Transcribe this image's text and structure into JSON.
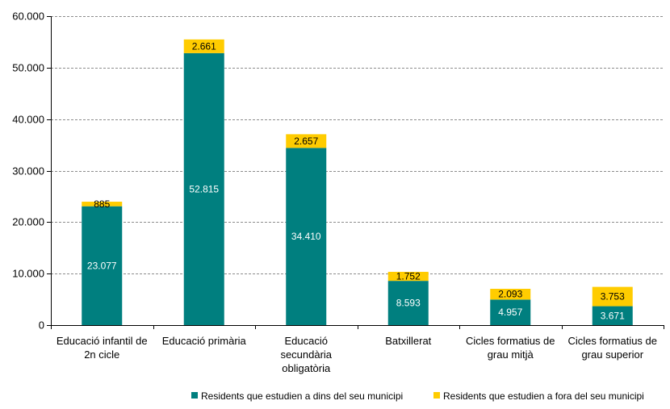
{
  "chart_data": {
    "type": "bar",
    "stacked": true,
    "categories": [
      [
        "Educació infantil de",
        "2n cicle"
      ],
      [
        "Educació primària"
      ],
      [
        "Educació",
        "secundària",
        "obligatòria"
      ],
      [
        "Batxillerat"
      ],
      [
        "Cicles formatius de",
        "grau mitjà"
      ],
      [
        "Cicles formatius de",
        "grau superior"
      ]
    ],
    "series": [
      {
        "name": "Residents que estudien a dins del seu municipi",
        "color": "#007F7F",
        "values": [
          23077,
          52815,
          34410,
          8593,
          4957,
          3671
        ],
        "labels": [
          "23.077",
          "52.815",
          "34.410",
          "8.593",
          "4.957",
          "3.671"
        ]
      },
      {
        "name": "Residents que estudien a fora del seu municipi",
        "color": "#FFCC00",
        "values": [
          885,
          2661,
          2657,
          1752,
          2093,
          3753
        ],
        "labels": [
          "885",
          "2.661",
          "2.657",
          "1.752",
          "2.093",
          "3.753"
        ]
      }
    ],
    "ylim": [
      0,
      60000
    ],
    "yticks": [
      0,
      10000,
      20000,
      30000,
      40000,
      50000,
      60000
    ],
    "ytick_labels": [
      "0",
      "10.000",
      "20.000",
      "30.000",
      "40.000",
      "50.000",
      "60.000"
    ],
    "grid": true,
    "legend_position": "bottom-right",
    "title": "",
    "xlabel": "",
    "ylabel": ""
  }
}
